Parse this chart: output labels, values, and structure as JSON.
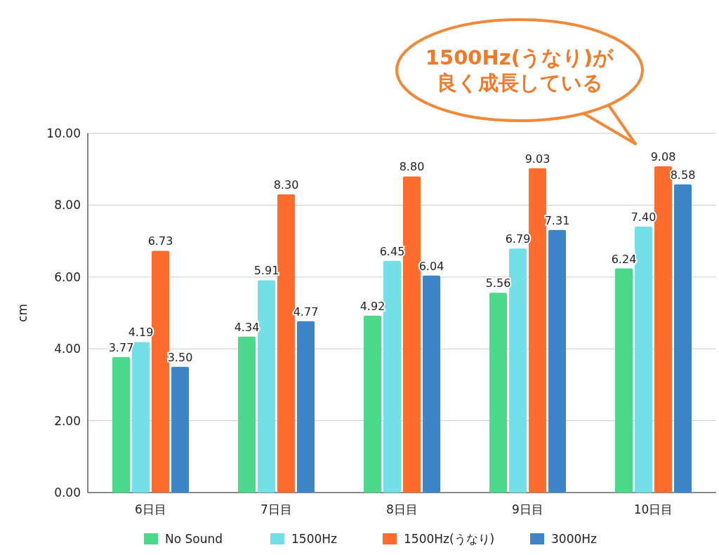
{
  "chart_data": {
    "type": "bar",
    "ylabel": "cm",
    "categories": [
      "6日目",
      "7日目",
      "8日目",
      "9日目",
      "10日目"
    ],
    "series": [
      {
        "name": "No Sound",
        "color": "#4cd98c",
        "values": [
          3.77,
          4.34,
          4.92,
          5.56,
          6.24
        ],
        "value_labels": [
          "3.77",
          "4.34",
          "4.92",
          "5.56",
          "6.24"
        ]
      },
      {
        "name": "1500Hz",
        "color": "#72e0e6",
        "values": [
          4.19,
          5.91,
          6.45,
          6.79,
          7.4
        ],
        "value_labels": [
          "4.19",
          "5.91",
          "6.45",
          "6.79",
          "7.40"
        ]
      },
      {
        "name": "1500Hz(うなり)",
        "color": "#ff6d2e",
        "values": [
          6.73,
          8.3,
          8.8,
          9.03,
          9.08
        ],
        "value_labels": [
          "6.73",
          "8.30",
          "8.80",
          "9.03",
          "9.08"
        ]
      },
      {
        "name": "3000Hz",
        "color": "#3d85c6",
        "values": [
          3.5,
          4.77,
          6.04,
          7.31,
          8.58
        ],
        "value_labels": [
          "3.50",
          "4.77",
          "6.04",
          "7.31",
          "8.58"
        ]
      }
    ],
    "ylim": [
      0,
      10
    ],
    "yticks": [
      {
        "value": 0,
        "label": "0.00"
      },
      {
        "value": 2,
        "label": "2.00"
      },
      {
        "value": 4,
        "label": "4.00"
      },
      {
        "value": 6,
        "label": "6.00"
      },
      {
        "value": 8,
        "label": "8.00"
      },
      {
        "value": 10,
        "label": "10.00"
      }
    ],
    "grid": "y",
    "legend": "bottom",
    "annotations": [
      "1500Hz(うなり)が良く成長している"
    ]
  }
}
